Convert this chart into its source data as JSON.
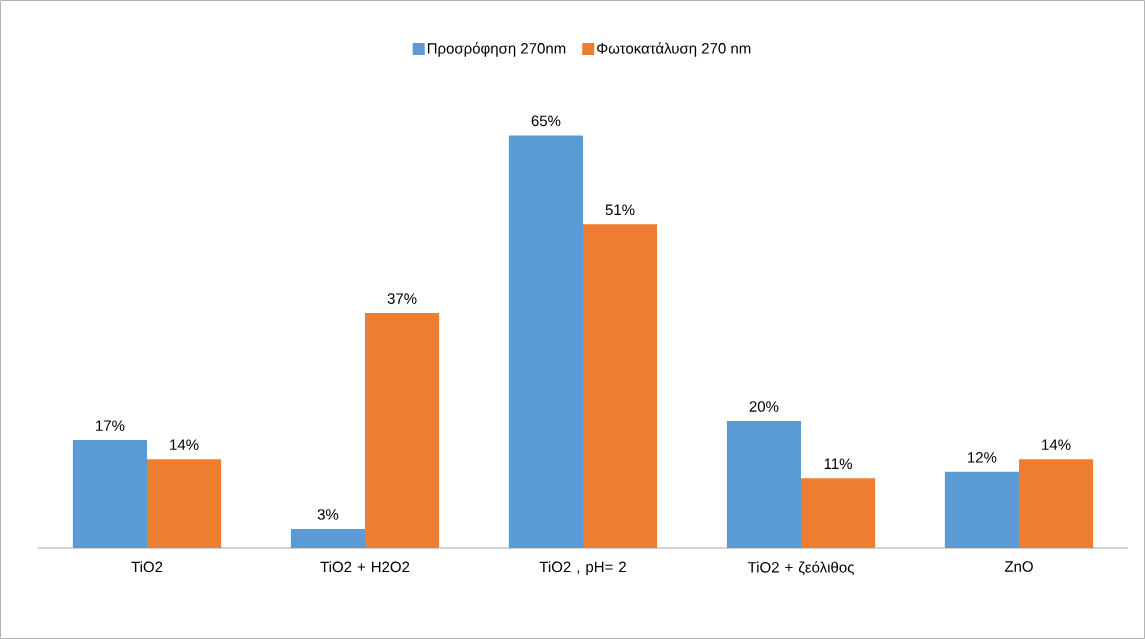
{
  "chart_data": {
    "type": "bar",
    "categories": [
      "TiO2",
      "TiO2 + H2O2",
      "TiO2 , pH= 2",
      "TiO2 + ζεόλιθος",
      "ZnO"
    ],
    "series": [
      {
        "name": "Προσρόφηση 270nm",
        "color": "#5b9bd5",
        "values": [
          17,
          3,
          65,
          20,
          12
        ],
        "value_labels": [
          "17%",
          "3%",
          "65%",
          "20%",
          "12%"
        ]
      },
      {
        "name": "Φωτοκατάλυση 270 nm",
        "color": "#ed7d31",
        "values": [
          14,
          37,
          51,
          11,
          14
        ],
        "value_labels": [
          "14%",
          "37%",
          "51%",
          "11%",
          "14%"
        ]
      }
    ],
    "legend": "top"
  }
}
